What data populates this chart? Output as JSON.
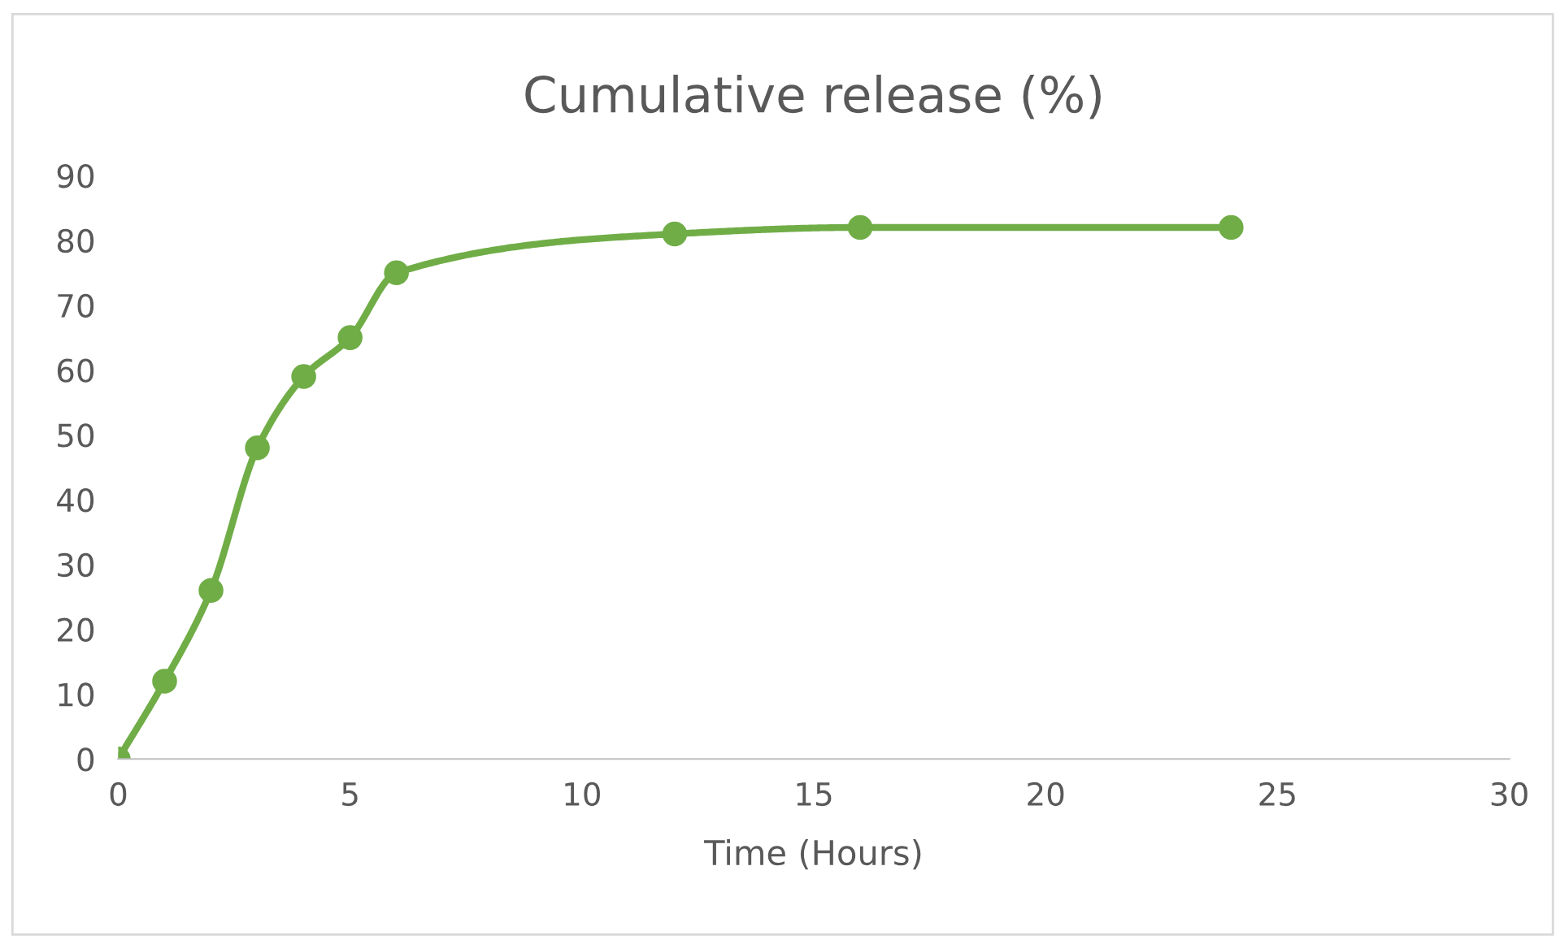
{
  "chart_data": {
    "type": "line",
    "title": "Cumulative release (%)",
    "xlabel": "Time (Hours)",
    "x": [
      0,
      1,
      2,
      3,
      4,
      5,
      6,
      12,
      16,
      24
    ],
    "series": [
      {
        "color": "#70ad47",
        "values": [
          0,
          12,
          26,
          48,
          59,
          65,
          75,
          81,
          82,
          82
        ]
      }
    ],
    "xlim": [
      0,
      30
    ],
    "xticks": [
      0,
      5,
      10,
      15,
      20,
      25,
      30
    ],
    "ylim": [
      0,
      90
    ],
    "yticks": [
      0,
      10,
      20,
      30,
      40,
      50,
      60,
      70,
      80,
      90
    ],
    "grid": false,
    "legend": false,
    "marker": "circle",
    "line_style": "solid"
  }
}
